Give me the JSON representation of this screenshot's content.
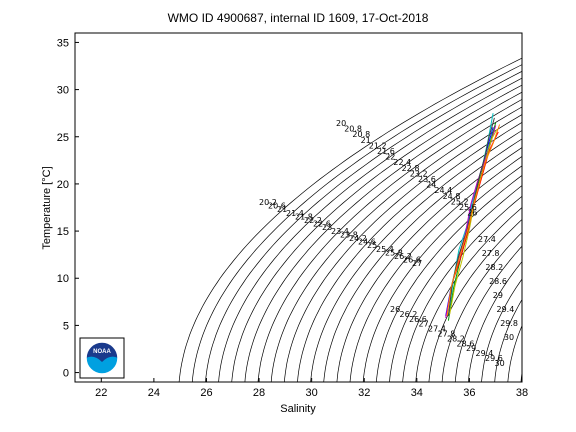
{
  "chart_data": {
    "type": "line",
    "title": "WMO ID 4900687, internal ID 1609, 17-Oct-2018",
    "xlabel": "Salinity",
    "ylabel": "Temperature [°C]",
    "xlim": [
      21,
      38
    ],
    "ylim": [
      -1,
      36
    ],
    "xticks": [
      22,
      24,
      26,
      28,
      30,
      32,
      34,
      36,
      38
    ],
    "yticks": [
      0,
      5,
      10,
      15,
      20,
      25,
      30,
      35
    ],
    "density_contours": {
      "sigma_min": 20,
      "sigma_max": 30,
      "step": 0.2,
      "labels_upper": [
        "20",
        "20.8",
        "20.8",
        "21",
        "21.2",
        "21.6",
        "22",
        "22.4",
        "22.8",
        "23.2",
        "23.6",
        "24",
        "24.4",
        "24.8",
        "25.2",
        "25.6",
        "26"
      ],
      "labels_middle": [
        "20.2",
        "20.6",
        "21",
        "21.4",
        "21.8",
        "22.2",
        "22.6",
        "23",
        "23.4",
        "23.8",
        "24.2",
        "24.6",
        "25",
        "25.4",
        "25.8",
        "26.2",
        "26.6",
        "27"
      ],
      "labels_right": [
        "27.4",
        "27.8",
        "28.2",
        "28.6",
        "29",
        "29.4",
        "29.8",
        "30"
      ],
      "labels_lower": [
        "26",
        "26.2",
        "26.6",
        "27",
        "27.4",
        "27.8",
        "28.2",
        "28.6",
        "29",
        "29.4",
        "29.6",
        "30"
      ]
    },
    "series": [
      {
        "color": "#0000ff",
        "salinity": [
          35.1,
          35.3,
          35.6,
          35.9,
          36.1,
          36.3,
          36.5,
          36.7,
          36.9
        ],
        "temperature": [
          6,
          9,
          12,
          15,
          18,
          20,
          22,
          24,
          26
        ]
      },
      {
        "color": "#00a000",
        "salinity": [
          35.2,
          35.4,
          35.7,
          36.0,
          36.2,
          36.4,
          36.6,
          36.8,
          37.0
        ],
        "temperature": [
          5.5,
          9,
          12.5,
          15.5,
          18.5,
          20.5,
          22.5,
          24.5,
          26.5
        ]
      },
      {
        "color": "#ff0000",
        "salinity": [
          35.15,
          35.35,
          35.65,
          35.95,
          36.15,
          36.35,
          36.55,
          36.75,
          37.1
        ],
        "temperature": [
          6.5,
          9.5,
          12,
          15,
          17.5,
          19.5,
          21.5,
          23.5,
          25.5
        ]
      },
      {
        "color": "#00bfbf",
        "salinity": [
          35.2,
          35.4,
          35.6,
          35.9,
          36.1,
          36.3,
          36.5,
          36.7,
          36.9
        ],
        "temperature": [
          6,
          10,
          13,
          15.5,
          18,
          20,
          22,
          24.5,
          27.5
        ]
      },
      {
        "color": "#bf00bf",
        "salinity": [
          35.1,
          35.3,
          35.55,
          35.85,
          36.05,
          36.3,
          36.55,
          36.8,
          37.0
        ],
        "temperature": [
          5.8,
          8.8,
          11.8,
          14.8,
          17.8,
          20.2,
          22.2,
          24.2,
          26.2
        ]
      },
      {
        "color": "#bfbf00",
        "salinity": [
          35.25,
          35.45,
          35.75,
          36.0,
          36.2,
          36.45,
          36.65,
          36.85,
          37.05
        ],
        "temperature": [
          6.2,
          9.2,
          12.2,
          15.2,
          18.2,
          20.8,
          22.8,
          24.8,
          25.8
        ]
      },
      {
        "color": "#404040",
        "salinity": [
          35.2,
          35.35,
          35.6,
          35.9,
          36.15,
          36.4,
          36.6,
          36.75,
          36.95
        ],
        "temperature": [
          6,
          9.5,
          12.5,
          15,
          18,
          21,
          23,
          25,
          27
        ]
      },
      {
        "color": "#ff8000",
        "salinity": [
          35.15,
          35.3,
          35.6,
          35.95,
          36.2,
          36.4,
          36.6,
          36.9,
          37.15
        ],
        "temperature": [
          6,
          9,
          12,
          15.3,
          18.3,
          20.3,
          22.3,
          24.3,
          26.3
        ]
      }
    ]
  },
  "logo": {
    "text": "NOAA",
    "colors": {
      "top": "#1a3a8c",
      "bottom": "#00a0e0"
    }
  }
}
